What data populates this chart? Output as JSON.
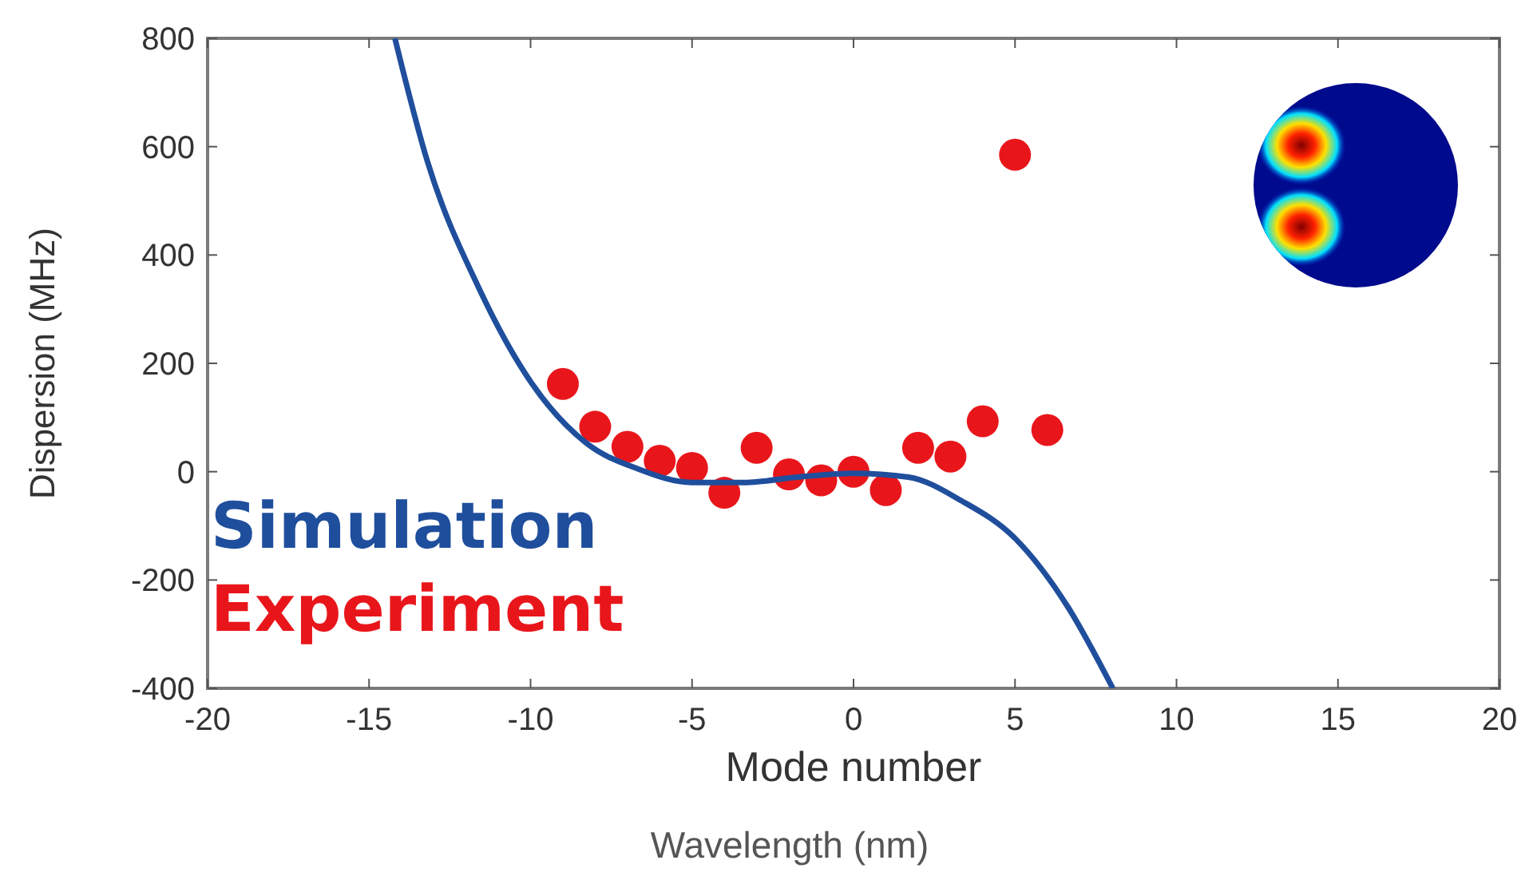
{
  "chart_data": {
    "type": "scatter",
    "xlabel": "Mode number",
    "ylabel": "Dispersion (MHz)",
    "xlim": [
      -20,
      20
    ],
    "xticks": [
      -20,
      -15,
      -10,
      -5,
      0,
      5,
      10,
      15,
      20
    ],
    "ylim": [
      -400,
      800
    ],
    "yticks": [
      -400,
      -200,
      0,
      200,
      400,
      600,
      800
    ],
    "grid": false,
    "legend": "bottom left",
    "annotations": [
      "Wavelength (nm)"
    ],
    "series": [
      {
        "name": "Simulation",
        "type": "line",
        "color": "#1f4e9c",
        "marker": "none",
        "line_style": "solid",
        "x": [
          -14.2,
          -13.2,
          -11.6,
          -9.95,
          -8.3,
          -6.67,
          -5,
          -3.4,
          -1.74,
          0,
          1.7,
          3.35,
          5,
          6.64,
          8.03
        ],
        "values": [
          800,
          574,
          339,
          162,
          54,
          5,
          -20,
          -20,
          -10,
          -3,
          -10,
          -54,
          -123,
          -250,
          -400
        ]
      },
      {
        "name": "Experiment",
        "color": "#e8161b",
        "marker": "circle",
        "x": [
          -9,
          -8,
          -7,
          -6,
          -5,
          -4,
          -3,
          -2,
          -1,
          0,
          1,
          2,
          3,
          4,
          5,
          6
        ],
        "values": [
          162,
          83,
          46,
          20,
          7,
          -39,
          44,
          -5,
          -16,
          0,
          -34,
          44,
          28,
          93,
          585,
          77
        ]
      }
    ]
  }
}
